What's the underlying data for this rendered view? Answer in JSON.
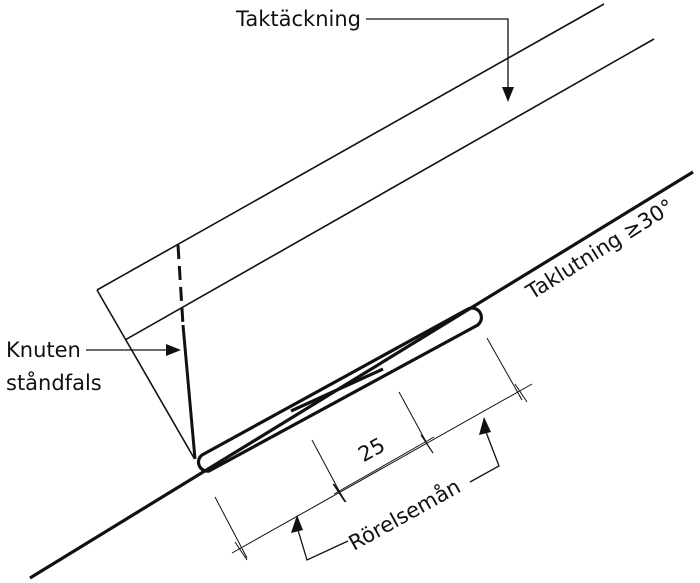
{
  "diagram": {
    "labels": {
      "roof_covering": "Taktäckning",
      "roof_slope": "Taklutning ≥30°",
      "seam_line1": "Knuten",
      "seam_line2": "ståndfals",
      "dimension": "25",
      "movement": "Rörelsemån"
    },
    "colors": {
      "ink": "#111111",
      "background": "#ffffff"
    }
  }
}
